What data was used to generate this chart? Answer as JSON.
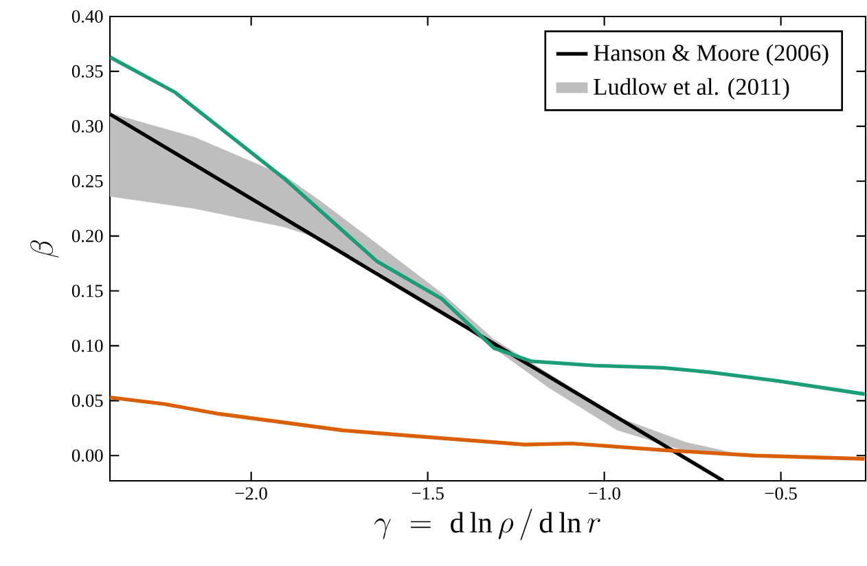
{
  "chart_data": {
    "type": "line",
    "xlabel": "\\gamma \\;=\\; \\mathrm{d}\\ln\\rho\\,/\\,\\mathrm{d}\\ln r",
    "ylabel": "\\beta",
    "xlim": [
      -2.4,
      -0.26
    ],
    "ylim": [
      -0.023,
      0.4
    ],
    "xticks": [
      {
        "value": -2.0,
        "label": "−2.0"
      },
      {
        "value": -1.5,
        "label": "−1.5"
      },
      {
        "value": -1.0,
        "label": "−1.0"
      },
      {
        "value": -0.5,
        "label": "−0.5"
      }
    ],
    "yticks": [
      {
        "value": 0.0,
        "label": "0.00"
      },
      {
        "value": 0.05,
        "label": "0.05"
      },
      {
        "value": 0.1,
        "label": "0.10"
      },
      {
        "value": 0.15,
        "label": "0.15"
      },
      {
        "value": 0.2,
        "label": "0.20"
      },
      {
        "value": 0.25,
        "label": "0.25"
      },
      {
        "value": 0.3,
        "label": "0.30"
      },
      {
        "value": 0.35,
        "label": "0.35"
      },
      {
        "value": 0.4,
        "label": "0.40"
      }
    ],
    "legend": "top right",
    "series": [
      {
        "type": "area",
        "name": "Ludlow et al. (2011)",
        "color": "#bebebe",
        "x": [
          -2.4,
          -2.16,
          -1.905,
          -1.8,
          -1.644,
          -1.46,
          -1.313,
          -1.158,
          -0.963,
          -0.768,
          -0.64
        ],
        "values": [
          null,
          null,
          null,
          null,
          null,
          null,
          null,
          null,
          null,
          null,
          null
        ],
        "upper": [
          0.312,
          0.29,
          0.255,
          0.231,
          0.193,
          0.148,
          0.106,
          0.075,
          0.035,
          0.012,
          0.003
        ],
        "lower": [
          0.236,
          0.225,
          0.208,
          0.197,
          0.168,
          0.131,
          0.098,
          0.062,
          0.023,
          0.004,
          0.001
        ]
      },
      {
        "name": "Hanson & Moore (2006)",
        "color": "#000000",
        "x": [
          -2.4,
          -0.663
        ],
        "values": [
          0.311,
          -0.023
        ]
      },
      {
        "color": "#1b9e77",
        "x": [
          -2.4,
          -2.216,
          -1.905,
          -1.644,
          -1.461,
          -1.313,
          -1.208,
          -1.029,
          -0.835,
          -0.702,
          -0.508,
          -0.263
        ],
        "values": [
          0.363,
          0.331,
          0.252,
          0.177,
          0.143,
          0.098,
          0.086,
          0.082,
          0.08,
          0.076,
          0.068,
          0.056
        ]
      },
      {
        "color": "#d95f02",
        "x": [
          -2.4,
          -2.247,
          -2.091,
          -1.741,
          -1.547,
          -1.224,
          -1.091,
          -0.835,
          -0.574,
          -0.263
        ],
        "values": [
          0.053,
          0.047,
          0.038,
          0.023,
          0.018,
          0.01,
          0.011,
          0.005,
          0.0,
          -0.003
        ]
      }
    ]
  }
}
